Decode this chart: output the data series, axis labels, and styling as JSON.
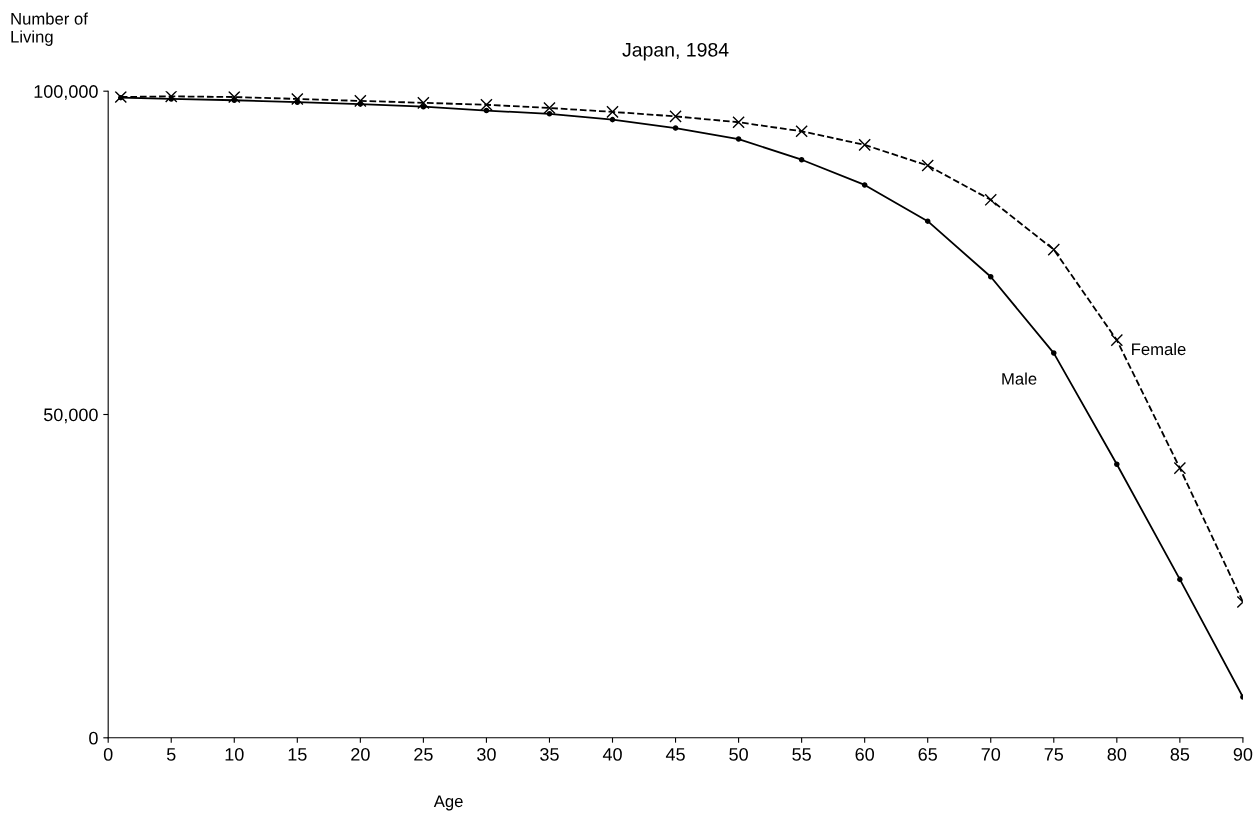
{
  "chart_data": {
    "type": "line",
    "title": "Japan, 1984",
    "xlabel": "Age",
    "ylabel": "Number of\nLiving",
    "x": [
      1,
      5,
      10,
      15,
      20,
      25,
      30,
      35,
      40,
      45,
      50,
      55,
      60,
      65,
      70,
      75,
      80,
      85,
      90
    ],
    "series": [
      {
        "name": "Male",
        "color": "#000000",
        "marker": "circle",
        "line_style": "solid",
        "values": [
          99000,
          98800,
          98600,
          98300,
          98000,
          97600,
          97000,
          96500,
          95600,
          94300,
          92600,
          89400,
          85500,
          79900,
          71300,
          59500,
          42300,
          24500,
          6300
        ]
      },
      {
        "name": "Female",
        "color": "#000000",
        "marker": "cross",
        "line_style": "dashed",
        "values": [
          99100,
          99200,
          99100,
          98800,
          98500,
          98200,
          97900,
          97400,
          96800,
          96100,
          95200,
          93800,
          91700,
          88500,
          83200,
          75500,
          61500,
          41700,
          21000
        ]
      }
    ],
    "xlim": [
      0,
      90
    ],
    "xticks": [
      0,
      5,
      10,
      15,
      20,
      25,
      30,
      35,
      40,
      45,
      50,
      55,
      60,
      65,
      70,
      75,
      80,
      85,
      90
    ],
    "ylim": [
      0,
      100000
    ],
    "yticks": [
      0,
      {
        "value": 50000,
        "label": "50,000"
      },
      {
        "value": 100000,
        "label": "100,000"
      }
    ],
    "grid": false,
    "legend": false
  }
}
